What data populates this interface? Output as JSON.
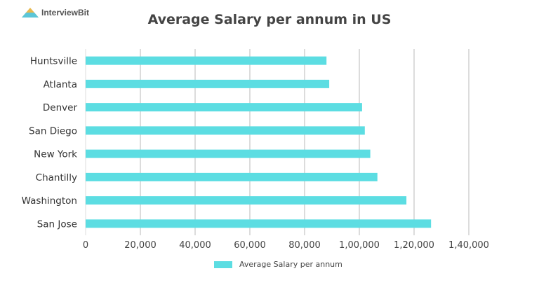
{
  "logo": {
    "text": "InterviewBit"
  },
  "chart_data": {
    "type": "bar",
    "orientation": "horizontal",
    "title": "Average Salary per annum in US",
    "categories": [
      "Huntsville",
      "Atlanta",
      "Denver",
      "San Diego",
      "New York",
      "Chantilly",
      "Washington",
      "San Jose"
    ],
    "series": [
      {
        "name": "Average Salary per annum",
        "values": [
          88000,
          89000,
          101000,
          102000,
          104000,
          106600,
          117200,
          126200
        ]
      }
    ],
    "xlim": [
      0,
      140000
    ],
    "xticks": [
      "0",
      "20,000",
      "40,000",
      "60,000",
      "80,000",
      "1,00,000",
      "1,20,000",
      "1,40,000"
    ],
    "grid": true,
    "legend": "bottom",
    "color": "#5cdde2"
  }
}
